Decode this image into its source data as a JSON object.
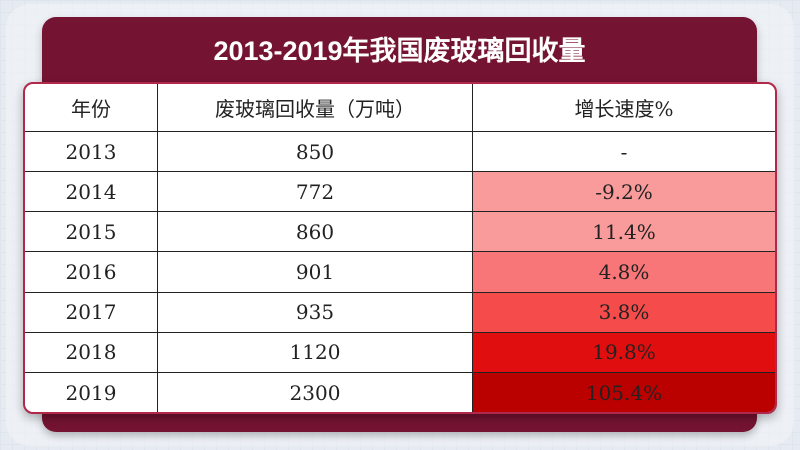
{
  "title": "2013-2019年我国废玻璃回收量",
  "headers": [
    "年份",
    "废玻璃回收量（万吨）",
    "增长速度%"
  ],
  "rows": [
    {
      "year": "2013",
      "amount": "850",
      "growth": "-",
      "color": "#ffffff"
    },
    {
      "year": "2014",
      "amount": "772",
      "growth": "-9.2%",
      "color": "#f99a9b"
    },
    {
      "year": "2015",
      "amount": "860",
      "growth": "11.4%",
      "color": "#f99a9b"
    },
    {
      "year": "2016",
      "amount": "901",
      "growth": "4.8%",
      "color": "#f87677"
    },
    {
      "year": "2017",
      "amount": "935",
      "growth": "3.8%",
      "color": "#f54b4b"
    },
    {
      "year": "2018",
      "amount": "1120",
      "growth": "19.8%",
      "color": "#e00e0e"
    },
    {
      "year": "2019",
      "amount": "2300",
      "growth": "105.4%",
      "color": "#bb0000"
    }
  ]
}
